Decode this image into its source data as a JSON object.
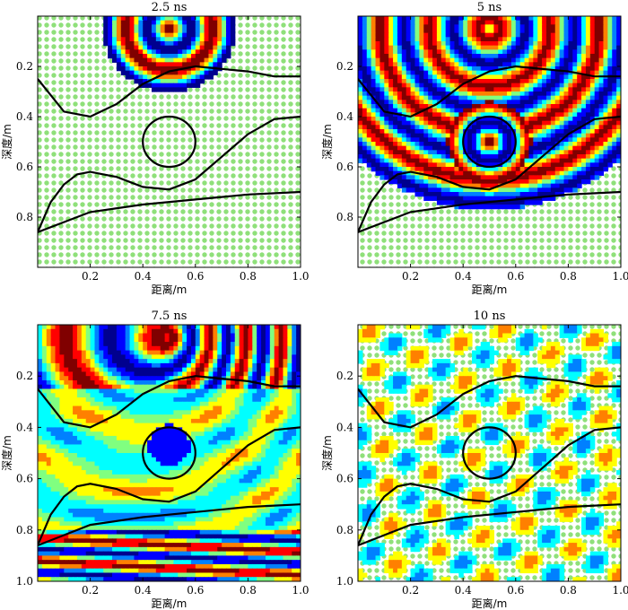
{
  "colors": {
    "grid_dot": "#8fe07a",
    "curve": "#000000",
    "colormap": [
      "#00008f",
      "#0000ff",
      "#0080ff",
      "#00ffff",
      "#80ff80",
      "#ffff00",
      "#ff8000",
      "#ff0000",
      "#800000"
    ]
  },
  "chart_data": [
    {
      "type": "heatmap",
      "title": "2.5 ns",
      "xlabel": "距离/m",
      "ylabel": "深度/m",
      "xlim": [
        0,
        1.0
      ],
      "ylim": [
        0,
        1.0
      ],
      "y_reversed": true,
      "xticks": [
        "0.2",
        "0.4",
        "0.6",
        "0.8",
        "1.0"
      ],
      "yticks": [
        "0.2",
        "0.4",
        "0.6",
        "0.8"
      ],
      "wavefront": {
        "source": [
          0.5,
          0.05
        ],
        "radius": 0.25
      }
    },
    {
      "type": "heatmap",
      "title": "5 ns",
      "xlabel": "距离/m",
      "ylabel": "深度/m",
      "xlim": [
        0,
        1.0
      ],
      "ylim": [
        0,
        1.0
      ],
      "y_reversed": true,
      "xticks": [
        "0.2",
        "0.4",
        "0.6",
        "0.8",
        "1.0"
      ],
      "yticks": [
        "0.2",
        "0.4",
        "0.6",
        "0.8"
      ],
      "wavefront": {
        "source": [
          0.5,
          0.05
        ],
        "radius": 0.75
      }
    },
    {
      "type": "heatmap",
      "title": "7.5 ns",
      "xlabel": "距离/m",
      "ylabel": "深度/m",
      "xlim": [
        0,
        1.0
      ],
      "ylim": [
        0,
        1.0
      ],
      "y_reversed": true,
      "xticks": [
        "0.2",
        "0.4",
        "0.6",
        "0.8",
        "1.0"
      ],
      "yticks": [
        "0.2",
        "0.4",
        "0.6",
        "0.8",
        "1.0"
      ],
      "wavefront": {
        "source": [
          0.5,
          0.05
        ],
        "radius": 1.0
      }
    },
    {
      "type": "heatmap",
      "title": "10 ns",
      "xlabel": "距离/m",
      "ylabel": "深度/m",
      "xlim": [
        0,
        1.0
      ],
      "ylim": [
        0,
        1.0
      ],
      "y_reversed": true,
      "xticks": [
        "0.2",
        "0.4",
        "0.6",
        "0.8",
        "1.0"
      ],
      "yticks": [
        "0.2",
        "0.4",
        "0.6",
        "0.8",
        "1.0"
      ],
      "wavefront": {
        "source": [
          0.5,
          0.05
        ],
        "radius": 1.4
      }
    }
  ],
  "overlay": {
    "interfaces": [
      {
        "name": "upper-interface",
        "points": [
          [
            0,
            0.25
          ],
          [
            0.1,
            0.38
          ],
          [
            0.2,
            0.4
          ],
          [
            0.3,
            0.35
          ],
          [
            0.4,
            0.27
          ],
          [
            0.5,
            0.22
          ],
          [
            0.6,
            0.2
          ],
          [
            0.7,
            0.21
          ],
          [
            0.8,
            0.22
          ],
          [
            0.9,
            0.24
          ],
          [
            1.0,
            0.24
          ]
        ]
      },
      {
        "name": "middle-interface",
        "points": [
          [
            0,
            0.86
          ],
          [
            0.05,
            0.74
          ],
          [
            0.1,
            0.67
          ],
          [
            0.15,
            0.63
          ],
          [
            0.2,
            0.62
          ],
          [
            0.3,
            0.64
          ],
          [
            0.4,
            0.68
          ],
          [
            0.5,
            0.69
          ],
          [
            0.6,
            0.65
          ],
          [
            0.7,
            0.56
          ],
          [
            0.8,
            0.47
          ],
          [
            0.9,
            0.41
          ],
          [
            1.0,
            0.4
          ]
        ]
      },
      {
        "name": "lower-interface",
        "points": [
          [
            0,
            0.86
          ],
          [
            0.2,
            0.78
          ],
          [
            0.4,
            0.75
          ],
          [
            0.6,
            0.73
          ],
          [
            0.8,
            0.71
          ],
          [
            1.0,
            0.7
          ]
        ]
      }
    ],
    "circle": {
      "center": [
        0.5,
        0.5
      ],
      "radius": 0.1
    }
  }
}
